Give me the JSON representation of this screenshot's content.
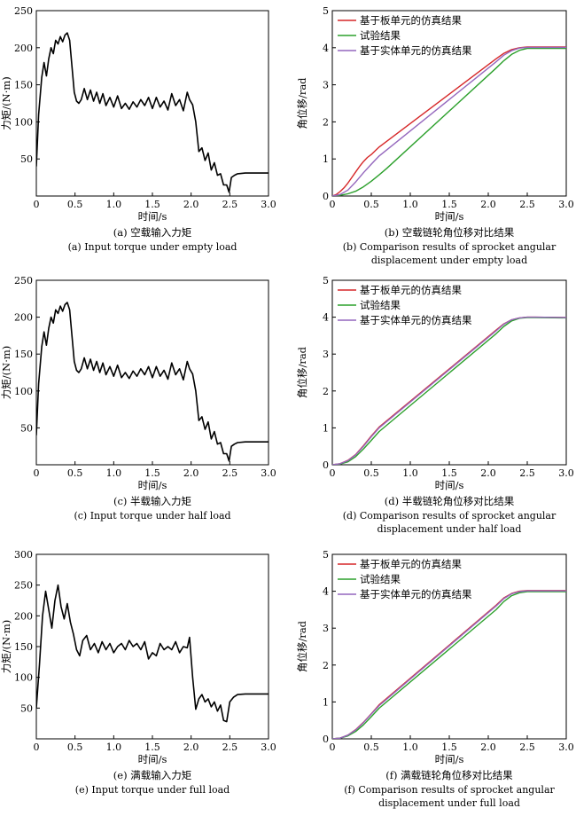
{
  "chart_data": [
    {
      "id": "a",
      "type": "line",
      "caption_cn": "(a) 空载输入力矩",
      "caption_en": [
        "(a) Input torque under empty load"
      ],
      "xlabel": "时间/s",
      "ylabel": "力矩/(N·m)",
      "xlim": [
        0,
        3.0
      ],
      "ylim": [
        0,
        250
      ],
      "xticks": [
        "0",
        "0.5",
        "1.0",
        "1.5",
        "2.0",
        "2.5",
        "3.0"
      ],
      "yticks": [
        "50",
        "100",
        "150",
        "200",
        "250"
      ],
      "grid": false,
      "legend": null,
      "series": [
        {
          "color": "#000000",
          "x": [
            0,
            0.03,
            0.07,
            0.1,
            0.13,
            0.16,
            0.19,
            0.22,
            0.25,
            0.28,
            0.31,
            0.34,
            0.37,
            0.4,
            0.43,
            0.46,
            0.49,
            0.52,
            0.55,
            0.58,
            0.62,
            0.66,
            0.7,
            0.74,
            0.78,
            0.82,
            0.86,
            0.9,
            0.95,
            1.0,
            1.05,
            1.1,
            1.15,
            1.2,
            1.25,
            1.3,
            1.35,
            1.4,
            1.45,
            1.5,
            1.55,
            1.6,
            1.65,
            1.7,
            1.75,
            1.8,
            1.85,
            1.9,
            1.95,
            1.98,
            2.02,
            2.06,
            2.1,
            2.14,
            2.18,
            2.22,
            2.26,
            2.3,
            2.34,
            2.38,
            2.42,
            2.46,
            2.49,
            2.52,
            2.56,
            2.6,
            2.7,
            2.8,
            3.0
          ],
          "y": [
            40,
            110,
            160,
            180,
            162,
            185,
            200,
            192,
            210,
            205,
            215,
            208,
            217,
            220,
            210,
            175,
            140,
            128,
            125,
            130,
            145,
            130,
            143,
            128,
            140,
            125,
            138,
            122,
            133,
            120,
            135,
            118,
            125,
            117,
            127,
            120,
            130,
            122,
            133,
            118,
            133,
            120,
            128,
            116,
            138,
            122,
            130,
            115,
            140,
            130,
            123,
            100,
            60,
            65,
            48,
            58,
            35,
            45,
            28,
            30,
            15,
            15,
            5,
            25,
            28,
            30,
            31,
            31,
            31
          ]
        }
      ]
    },
    {
      "id": "b",
      "type": "line",
      "caption_cn": "(b) 空载链轮角位移对比结果",
      "caption_en": [
        "(b) Comparison results of sprocket angular",
        "displacement under empty load"
      ],
      "xlabel": "时间/s",
      "ylabel": "角位移/rad",
      "xlim": [
        0,
        3.0
      ],
      "ylim": [
        0,
        5
      ],
      "xticks": [
        "0",
        "0.5",
        "1.0",
        "1.5",
        "2.0",
        "2.5",
        "3.0"
      ],
      "yticks": [
        "0",
        "1",
        "2",
        "3",
        "4",
        "5"
      ],
      "grid": false,
      "legend": "top-left",
      "series": [
        {
          "name": "基于板单元的仿真结果",
          "color": "#d62728",
          "x": [
            0,
            0.05,
            0.1,
            0.15,
            0.2,
            0.25,
            0.3,
            0.35,
            0.4,
            0.45,
            0.5,
            0.55,
            0.6,
            2.1,
            2.2,
            2.3,
            2.4,
            2.5,
            2.6,
            3.0
          ],
          "y": [
            0,
            0.04,
            0.12,
            0.22,
            0.35,
            0.5,
            0.65,
            0.8,
            0.93,
            1.04,
            1.12,
            1.22,
            1.32,
            3.7,
            3.85,
            3.95,
            4.0,
            4.02,
            4.02,
            4.02
          ]
        },
        {
          "name": "试验结果",
          "color": "#2ca02c",
          "x": [
            0,
            0.1,
            0.2,
            0.3,
            0.4,
            0.5,
            0.6,
            0.7,
            2.1,
            2.2,
            2.3,
            2.4,
            2.5,
            2.6,
            3.0
          ],
          "y": [
            0,
            0.02,
            0.06,
            0.13,
            0.25,
            0.4,
            0.57,
            0.75,
            3.45,
            3.65,
            3.82,
            3.93,
            3.98,
            3.98,
            3.98
          ]
        },
        {
          "name": "基于实体单元的仿真结果",
          "color": "#9467bd",
          "x": [
            0,
            0.1,
            0.2,
            0.3,
            0.4,
            0.5,
            0.6,
            2.1,
            2.2,
            2.3,
            2.4,
            2.5,
            2.6,
            3.0
          ],
          "y": [
            0,
            0.04,
            0.16,
            0.38,
            0.63,
            0.86,
            1.08,
            3.62,
            3.8,
            3.92,
            3.99,
            4.01,
            4.01,
            4.01
          ]
        }
      ]
    },
    {
      "id": "c",
      "type": "line",
      "caption_cn": "(c) 半载输入力矩",
      "caption_en": [
        "(c) Input torque under half load"
      ],
      "xlabel": "时间/s",
      "ylabel": "力矩/(N·m)",
      "xlim": [
        0,
        3.0
      ],
      "ylim": [
        0,
        250
      ],
      "xticks": [
        "0",
        "0.5",
        "1.0",
        "1.5",
        "2.0",
        "2.5",
        "3.0"
      ],
      "yticks": [
        "50",
        "100",
        "150",
        "200",
        "250"
      ],
      "grid": false,
      "legend": null,
      "series": [
        {
          "color": "#000000",
          "x": [
            0,
            0.03,
            0.07,
            0.1,
            0.13,
            0.16,
            0.19,
            0.22,
            0.25,
            0.28,
            0.31,
            0.34,
            0.37,
            0.4,
            0.43,
            0.46,
            0.49,
            0.52,
            0.55,
            0.58,
            0.62,
            0.66,
            0.7,
            0.74,
            0.78,
            0.82,
            0.86,
            0.9,
            0.95,
            1.0,
            1.05,
            1.1,
            1.15,
            1.2,
            1.25,
            1.3,
            1.35,
            1.4,
            1.45,
            1.5,
            1.55,
            1.6,
            1.65,
            1.7,
            1.75,
            1.8,
            1.85,
            1.9,
            1.95,
            1.98,
            2.02,
            2.06,
            2.1,
            2.14,
            2.18,
            2.22,
            2.26,
            2.3,
            2.34,
            2.38,
            2.42,
            2.46,
            2.49,
            2.52,
            2.56,
            2.6,
            2.7,
            2.8,
            3.0
          ],
          "y": [
            40,
            110,
            160,
            180,
            162,
            185,
            200,
            192,
            210,
            205,
            215,
            208,
            217,
            220,
            210,
            175,
            140,
            128,
            125,
            130,
            145,
            130,
            143,
            128,
            140,
            125,
            138,
            122,
            133,
            120,
            135,
            118,
            125,
            117,
            127,
            120,
            130,
            122,
            133,
            118,
            133,
            120,
            128,
            116,
            138,
            122,
            130,
            115,
            140,
            130,
            123,
            100,
            60,
            65,
            48,
            58,
            35,
            45,
            28,
            30,
            15,
            15,
            5,
            25,
            28,
            30,
            31,
            31,
            31
          ]
        }
      ]
    },
    {
      "id": "d",
      "type": "line",
      "caption_cn": "(d) 半载链轮角位移对比结果",
      "caption_en": [
        "(d) Comparison results of sprocket angular",
        "displacement under half load"
      ],
      "xlabel": "时间/s",
      "ylabel": "角位移/rad",
      "xlim": [
        0,
        3.0
      ],
      "ylim": [
        0,
        5
      ],
      "xticks": [
        "0",
        "0.5",
        "1.0",
        "1.5",
        "2.0",
        "2.5",
        "3.0"
      ],
      "yticks": [
        "0",
        "1",
        "2",
        "3",
        "4",
        "5"
      ],
      "grid": false,
      "legend": "top-left",
      "series": [
        {
          "name": "基于板单元的仿真结果",
          "color": "#d62728",
          "x": [
            0,
            0.1,
            0.2,
            0.3,
            0.4,
            0.5,
            0.6,
            2.1,
            2.2,
            2.3,
            2.4,
            2.5,
            2.6,
            3.0
          ],
          "y": [
            0,
            0.03,
            0.12,
            0.28,
            0.52,
            0.78,
            1.02,
            3.65,
            3.82,
            3.93,
            3.98,
            4.0,
            4.0,
            3.99
          ]
        },
        {
          "name": "试验结果",
          "color": "#2ca02c",
          "x": [
            0,
            0.1,
            0.2,
            0.3,
            0.4,
            0.5,
            0.6,
            2.1,
            2.2,
            2.3,
            2.4,
            2.5,
            2.6,
            3.0
          ],
          "y": [
            0,
            0.02,
            0.08,
            0.22,
            0.43,
            0.66,
            0.9,
            3.55,
            3.75,
            3.9,
            3.97,
            3.99,
            3.99,
            3.98
          ]
        },
        {
          "name": "基于实体单元的仿真结果",
          "color": "#9467bd",
          "x": [
            0,
            0.1,
            0.2,
            0.3,
            0.4,
            0.5,
            0.6,
            2.1,
            2.2,
            2.3,
            2.4,
            2.5,
            2.6,
            3.0
          ],
          "y": [
            0,
            0.03,
            0.11,
            0.27,
            0.5,
            0.76,
            1.0,
            3.63,
            3.81,
            3.93,
            3.98,
            4.0,
            4.0,
            3.99
          ]
        }
      ]
    },
    {
      "id": "e",
      "type": "line",
      "caption_cn": "(e) 满载输入力矩",
      "caption_en": [
        "(e) Input torque under full load"
      ],
      "xlabel": "时间/s",
      "ylabel": "力矩/(N·m)",
      "xlim": [
        0,
        3.0
      ],
      "ylim": [
        0,
        300
      ],
      "xticks": [
        "0",
        "0.5",
        "1.0",
        "1.5",
        "2.0",
        "2.5",
        "3.0"
      ],
      "yticks": [
        "50",
        "100",
        "150",
        "200",
        "250",
        "300"
      ],
      "grid": false,
      "legend": null,
      "series": [
        {
          "color": "#000000",
          "x": [
            0,
            0.04,
            0.08,
            0.12,
            0.16,
            0.2,
            0.24,
            0.28,
            0.32,
            0.36,
            0.4,
            0.44,
            0.48,
            0.52,
            0.56,
            0.6,
            0.65,
            0.7,
            0.75,
            0.8,
            0.85,
            0.9,
            0.95,
            1.0,
            1.05,
            1.1,
            1.15,
            1.2,
            1.25,
            1.3,
            1.35,
            1.4,
            1.45,
            1.5,
            1.55,
            1.6,
            1.65,
            1.7,
            1.75,
            1.8,
            1.85,
            1.9,
            1.95,
            1.98,
            2.02,
            2.06,
            2.1,
            2.14,
            2.18,
            2.22,
            2.26,
            2.3,
            2.34,
            2.38,
            2.42,
            2.46,
            2.5,
            2.55,
            2.6,
            2.7,
            2.8,
            3.0
          ],
          "y": [
            50,
            120,
            200,
            240,
            210,
            180,
            225,
            250,
            215,
            195,
            220,
            190,
            170,
            145,
            135,
            160,
            168,
            145,
            155,
            140,
            158,
            145,
            155,
            140,
            150,
            155,
            145,
            160,
            150,
            155,
            145,
            158,
            130,
            140,
            135,
            155,
            145,
            150,
            145,
            158,
            140,
            150,
            148,
            165,
            100,
            48,
            65,
            72,
            60,
            65,
            52,
            60,
            45,
            55,
            30,
            28,
            60,
            68,
            72,
            73,
            73,
            73
          ]
        }
      ]
    },
    {
      "id": "f",
      "type": "line",
      "caption_cn": "(f) 满载链轮角位移对比结果",
      "caption_en": [
        "(f) Comparison results of sprocket angular",
        "displacement under full load"
      ],
      "xlabel": "时间/s",
      "ylabel": "角位移/rad",
      "xlim": [
        0,
        3.0
      ],
      "ylim": [
        0,
        5
      ],
      "xticks": [
        "0",
        "0.5",
        "1.0",
        "1.5",
        "2.0",
        "2.5",
        "3.0"
      ],
      "yticks": [
        "0",
        "1",
        "2",
        "3",
        "4",
        "5"
      ],
      "grid": false,
      "legend": "top-left",
      "series": [
        {
          "name": "基于板单元的仿真结果",
          "color": "#d62728",
          "x": [
            0,
            0.1,
            0.2,
            0.3,
            0.4,
            0.5,
            0.6,
            2.1,
            2.2,
            2.3,
            2.4,
            2.5,
            2.6,
            3.0
          ],
          "y": [
            0,
            0.02,
            0.1,
            0.25,
            0.45,
            0.68,
            0.92,
            3.62,
            3.82,
            3.94,
            4.0,
            4.02,
            4.02,
            4.02
          ]
        },
        {
          "name": "试验结果",
          "color": "#2ca02c",
          "x": [
            0,
            0.1,
            0.2,
            0.3,
            0.4,
            0.5,
            0.6,
            2.1,
            2.2,
            2.3,
            2.4,
            2.5,
            2.6,
            3.0
          ],
          "y": [
            0,
            0.02,
            0.08,
            0.2,
            0.38,
            0.6,
            0.83,
            3.5,
            3.72,
            3.88,
            3.96,
            3.99,
            3.99,
            3.99
          ]
        },
        {
          "name": "基于实体单元的仿真结果",
          "color": "#9467bd",
          "x": [
            0,
            0.1,
            0.2,
            0.3,
            0.4,
            0.5,
            0.6,
            2.1,
            2.2,
            2.3,
            2.4,
            2.5,
            2.6,
            3.0
          ],
          "y": [
            0,
            0.02,
            0.1,
            0.24,
            0.44,
            0.67,
            0.9,
            3.6,
            3.8,
            3.93,
            3.99,
            4.01,
            4.01,
            4.01
          ]
        }
      ]
    }
  ]
}
